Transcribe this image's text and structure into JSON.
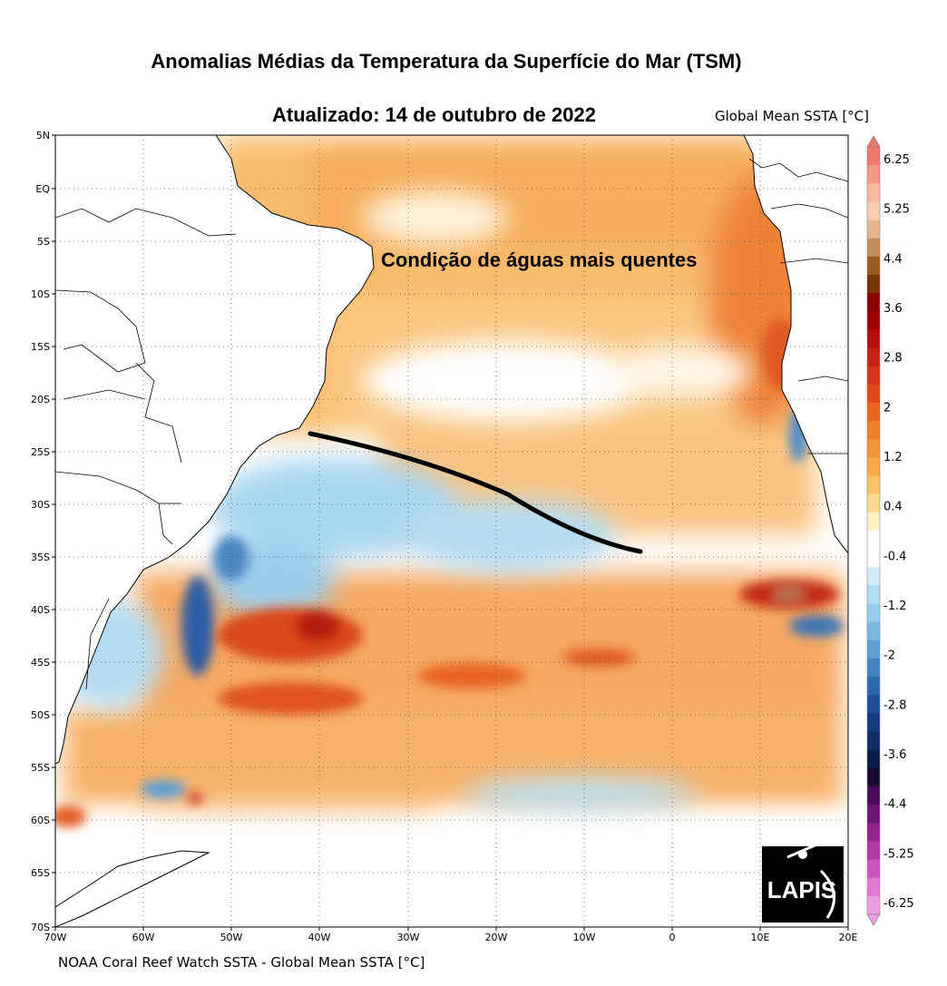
{
  "title": "Anomalias Médias da Temperatura da Superfície do Mar  (TSM)",
  "subtitle": "Atualizado: 14 de outubro de 2022",
  "variable_label": "Global Mean SSTA [°C]",
  "source": "NOAA Coral Reef Watch SSTA - Global Mean SSTA [°C]",
  "annotation": "Condição de águas mais quentes",
  "logo_text": "LAPIS",
  "lat_ticks": [
    "5N",
    "EQ",
    "5S",
    "10S",
    "15S",
    "20S",
    "25S",
    "30S",
    "35S",
    "40S",
    "45S",
    "50S",
    "55S",
    "60S",
    "65S",
    "70S"
  ],
  "lon_ticks": [
    "70W",
    "60W",
    "50W",
    "40W",
    "30W",
    "20W",
    "10W",
    "0",
    "10E",
    "20E"
  ],
  "colorbar_labels": [
    "6.25",
    "5.25",
    "4.4",
    "3.6",
    "2.8",
    "2",
    "1.2",
    "0.4",
    "-0.4",
    "-1.2",
    "-2",
    "-2.8",
    "-3.6",
    "-4.4",
    "-5.25",
    "-6.25"
  ],
  "colorbar_colors": [
    "#f0786e",
    "#f39a8b",
    "#f8b89f",
    "#f7cdb3",
    "#e6b38f",
    "#c08d5e",
    "#9c5a1c",
    "#7a3505",
    "#8a0000",
    "#a40000",
    "#b80d0d",
    "#c91f12",
    "#d73416",
    "#e44a19",
    "#ec6520",
    "#f07d28",
    "#f39437",
    "#f7ab48",
    "#fac264",
    "#fcd98b",
    "#fff2c9",
    "#ffffff",
    "#ffffff",
    "#d0ecf9",
    "#b2def3",
    "#96cdec",
    "#7ab8e0",
    "#5c9fd2",
    "#4184c1",
    "#2c68ad",
    "#1e4f97",
    "#173b80",
    "#102b66",
    "#0b1d4a",
    "#1a0a30",
    "#4a0a5a",
    "#6e1478",
    "#92228f",
    "#b338a8",
    "#cc55bd",
    "#e07ad0",
    "#ef9ce0"
  ]
}
